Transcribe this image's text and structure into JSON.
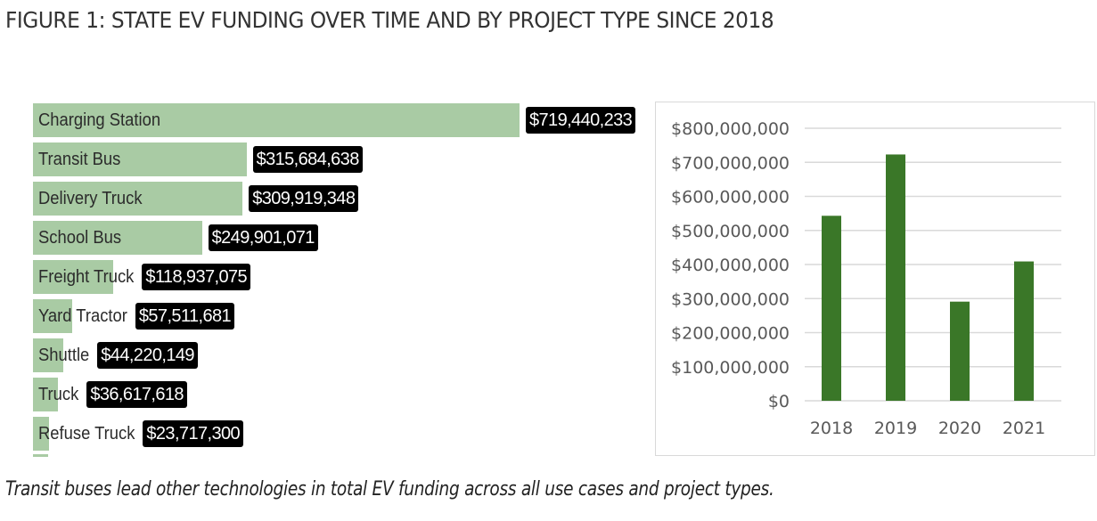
{
  "figure": {
    "title": "FIGURE 1: STATE EV FUNDING OVER TIME AND BY PROJECT TYPE SINCE 2018",
    "caption": "Transit buses lead other technologies in total EV funding across all use cases and project types."
  },
  "colors": {
    "hbar_fill": "#a9cba4",
    "value_label_bg": "#000000",
    "value_label_text": "#ffffff",
    "vbar_fill": "#3a7728",
    "gridline": "#d9d9d9",
    "axis_text": "#595959"
  },
  "chart_data": [
    {
      "type": "bar",
      "orientation": "horizontal",
      "title": "",
      "xlabel": "",
      "ylabel": "",
      "categories": [
        "Charging Station",
        "Transit Bus",
        "Delivery Truck",
        "School Bus",
        "Freight Truck",
        "Yard Tractor",
        "Shuttle",
        "Truck",
        "Refuse Truck"
      ],
      "values": [
        719440233,
        315684638,
        309919348,
        249901071,
        118937075,
        57511681,
        44220149,
        36617618,
        23717300
      ],
      "value_labels": [
        "$719,440,233",
        "$315,684,638",
        "$309,919,348",
        "$249,901,071",
        "$118,937,075",
        "$57,511,681",
        "$44,220,149",
        "$36,617,618",
        "$23,717,300"
      ],
      "xlim": [
        0,
        719440233
      ],
      "grid": false,
      "legend": "none"
    },
    {
      "type": "bar",
      "orientation": "vertical",
      "title": "",
      "xlabel": "",
      "ylabel": "",
      "categories": [
        "2018",
        "2019",
        "2020",
        "2021"
      ],
      "values": [
        543000000,
        723000000,
        291000000,
        409000000
      ],
      "ylim": [
        0,
        800000000
      ],
      "yticks": [
        0,
        100000000,
        200000000,
        300000000,
        400000000,
        500000000,
        600000000,
        700000000,
        800000000
      ],
      "ytick_labels": [
        "$0",
        "$100,000,000",
        "$200,000,000",
        "$300,000,000",
        "$400,000,000",
        "$500,000,000",
        "$600,000,000",
        "$700,000,000",
        "$800,000,000"
      ],
      "grid": true,
      "legend": "none"
    }
  ]
}
